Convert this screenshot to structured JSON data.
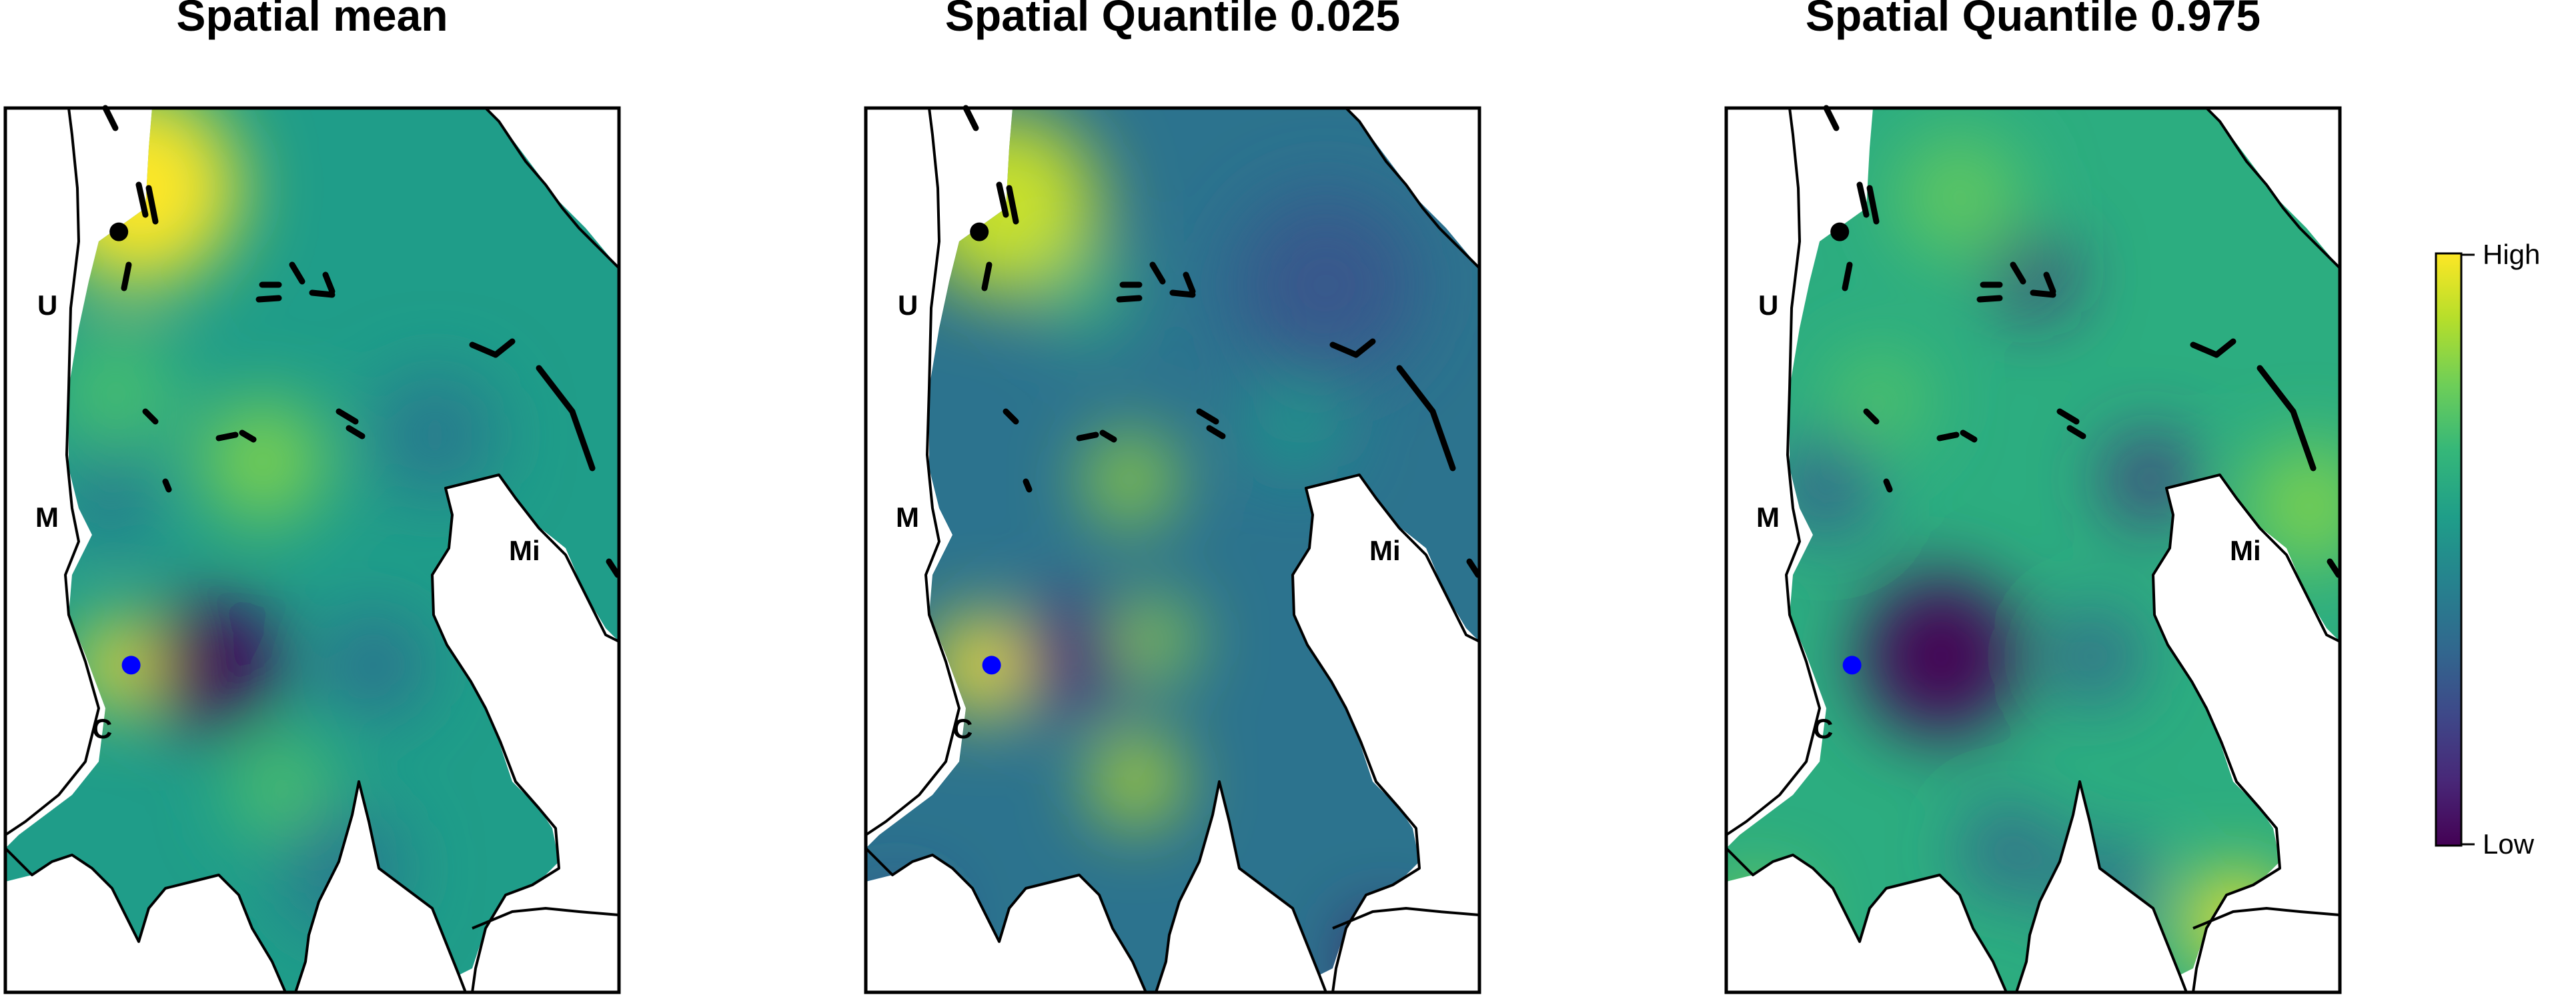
{
  "panels": [
    {
      "title": "Spatial mean",
      "base_level": 0.55,
      "blobs": [
        {
          "at": [
            0.22,
            0.09
          ],
          "r": 0.16,
          "level": 1.0
        },
        {
          "at": [
            0.42,
            0.4
          ],
          "r": 0.1,
          "level": 0.8
        },
        {
          "at": [
            0.19,
            0.63
          ],
          "r": 0.07,
          "level": 1.0
        },
        {
          "at": [
            0.34,
            0.63
          ],
          "r": 0.11,
          "level": 0.0
        },
        {
          "at": [
            0.6,
            0.63
          ],
          "r": 0.08,
          "level": 0.35
        },
        {
          "at": [
            0.18,
            0.32
          ],
          "r": 0.1,
          "level": 0.7
        },
        {
          "at": [
            0.45,
            0.77
          ],
          "r": 0.08,
          "level": 0.72
        },
        {
          "at": [
            0.55,
            0.86
          ],
          "r": 0.1,
          "level": 0.4
        },
        {
          "at": [
            0.7,
            0.37
          ],
          "r": 0.1,
          "level": 0.4
        },
        {
          "at": [
            0.17,
            0.44
          ],
          "r": 0.07,
          "level": 0.38
        }
      ],
      "points": [
        {
          "color": "#000000",
          "at": [
            0.185,
            0.14
          ]
        },
        {
          "color": "#0000ff",
          "at": [
            0.205,
            0.63
          ]
        }
      ]
    },
    {
      "title": "Spatial Quantile 0.025",
      "base_level": 0.38,
      "blobs": [
        {
          "at": [
            0.23,
            0.11
          ],
          "r": 0.15,
          "level": 0.92
        },
        {
          "at": [
            0.19,
            0.63
          ],
          "r": 0.08,
          "level": 1.0
        },
        {
          "at": [
            0.34,
            0.62
          ],
          "r": 0.1,
          "level": 0.12
        },
        {
          "at": [
            0.43,
            0.42
          ],
          "r": 0.07,
          "level": 0.85
        },
        {
          "at": [
            0.47,
            0.6
          ],
          "r": 0.06,
          "level": 0.85
        },
        {
          "at": [
            0.44,
            0.76
          ],
          "r": 0.07,
          "level": 0.9
        },
        {
          "at": [
            0.36,
            0.21
          ],
          "r": 0.07,
          "level": 0.65
        },
        {
          "at": [
            0.7,
            0.36
          ],
          "r": 0.07,
          "level": 0.55
        },
        {
          "at": [
            0.85,
            0.96
          ],
          "r": 0.06,
          "level": 0.0
        },
        {
          "at": [
            0.05,
            0.93
          ],
          "r": 0.06,
          "level": 0.2
        },
        {
          "at": [
            0.75,
            0.2
          ],
          "r": 0.15,
          "level": 0.28
        }
      ],
      "points": [
        {
          "color": "#000000",
          "at": [
            0.185,
            0.14
          ]
        },
        {
          "color": "#0000ff",
          "at": [
            0.205,
            0.63
          ]
        }
      ]
    },
    {
      "title": "Spatial Quantile 0.975",
      "base_level": 0.62,
      "blobs": [
        {
          "at": [
            0.35,
            0.62
          ],
          "r": 0.13,
          "level": 0.0
        },
        {
          "at": [
            0.5,
            0.19
          ],
          "r": 0.06,
          "level": 0.1
        },
        {
          "at": [
            0.69,
            0.42
          ],
          "r": 0.07,
          "level": 0.15
        },
        {
          "at": [
            0.16,
            0.43
          ],
          "r": 0.08,
          "level": 0.3
        },
        {
          "at": [
            0.6,
            0.62
          ],
          "r": 0.07,
          "level": 0.3
        },
        {
          "at": [
            0.46,
            0.84
          ],
          "r": 0.07,
          "level": 0.3
        },
        {
          "at": [
            0.62,
            0.88
          ],
          "r": 0.07,
          "level": 0.32
        },
        {
          "at": [
            0.83,
            0.92
          ],
          "r": 0.08,
          "level": 1.0
        },
        {
          "at": [
            0.05,
            0.92
          ],
          "r": 0.06,
          "level": 0.85
        },
        {
          "at": [
            0.38,
            0.1
          ],
          "r": 0.1,
          "level": 0.75
        },
        {
          "at": [
            0.95,
            0.45
          ],
          "r": 0.1,
          "level": 0.8
        },
        {
          "at": [
            0.25,
            0.33
          ],
          "r": 0.08,
          "level": 0.72
        }
      ],
      "points": [
        {
          "color": "#000000",
          "at": [
            0.185,
            0.14
          ]
        },
        {
          "color": "#0000ff",
          "at": [
            0.205,
            0.63
          ]
        }
      ]
    }
  ],
  "place_labels": {
    "U": "U",
    "M": "M",
    "C": "C",
    "Mi": "Mi"
  },
  "legend": {
    "high": "High",
    "low": "Low",
    "palette": [
      "#440154",
      "#482878",
      "#3e4989",
      "#31688e",
      "#26828e",
      "#1f9e89",
      "#35b779",
      "#6ece58",
      "#b5de2b",
      "#fde725"
    ]
  }
}
